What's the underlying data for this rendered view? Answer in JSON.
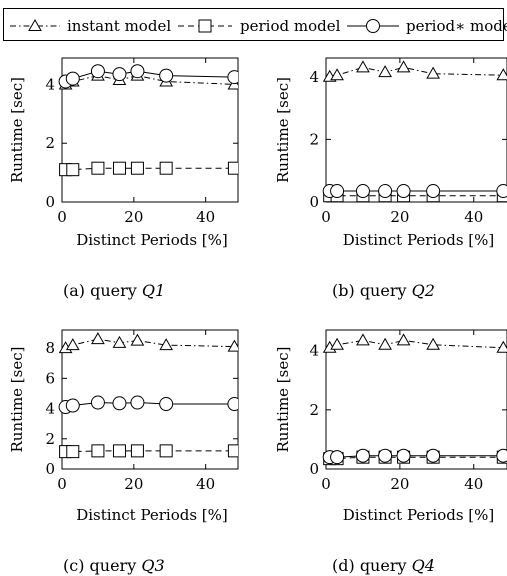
{
  "legend": {
    "entries": [
      {
        "label": "instant model",
        "marker": "triangle",
        "dash": "dashdot"
      },
      {
        "label": "period model",
        "marker": "square",
        "dash": "dashed"
      },
      {
        "label": "period∗ model",
        "marker": "circle",
        "dash": "solid"
      }
    ]
  },
  "chart_data": [
    {
      "type": "line",
      "caption_prefix": "(a) query ",
      "caption_query": "Q1",
      "xlabel": "Distinct Periods [%]",
      "ylabel": "Runtime [sec]",
      "xlim": [
        0,
        49
      ],
      "ylim": [
        0,
        4.9
      ],
      "xticks": [
        0,
        20,
        40
      ],
      "yticks": [
        0,
        2,
        4
      ],
      "grid": false,
      "series": [
        {
          "name": "instant model",
          "marker": "triangle",
          "x": [
            1,
            3,
            10,
            16,
            21,
            29,
            48
          ],
          "y": [
            4.0,
            4.1,
            4.3,
            4.15,
            4.3,
            4.1,
            4.0
          ]
        },
        {
          "name": "period model",
          "marker": "square",
          "x": [
            1,
            3,
            10,
            16,
            21,
            29,
            48
          ],
          "y": [
            1.1,
            1.1,
            1.15,
            1.15,
            1.15,
            1.15,
            1.15
          ]
        },
        {
          "name": "period∗ model",
          "marker": "circle",
          "x": [
            1,
            3,
            10,
            16,
            21,
            29,
            48
          ],
          "y": [
            4.1,
            4.2,
            4.45,
            4.35,
            4.45,
            4.3,
            4.25
          ]
        }
      ]
    },
    {
      "type": "line",
      "caption_prefix": "(b) query ",
      "caption_query": "Q2",
      "xlabel": "Distinct Periods [%]",
      "ylabel": "Runtime [sec]",
      "xlim": [
        0,
        49
      ],
      "ylim": [
        0,
        4.6
      ],
      "xticks": [
        0,
        20,
        40
      ],
      "yticks": [
        0,
        2,
        4
      ],
      "grid": false,
      "series": [
        {
          "name": "instant model",
          "marker": "triangle",
          "x": [
            1,
            3,
            10,
            16,
            21,
            29,
            48
          ],
          "y": [
            4.0,
            4.05,
            4.3,
            4.15,
            4.3,
            4.1,
            4.05
          ]
        },
        {
          "name": "period model",
          "marker": "square",
          "x": [
            1,
            3,
            10,
            16,
            21,
            29,
            48
          ],
          "y": [
            0.2,
            0.2,
            0.2,
            0.2,
            0.2,
            0.2,
            0.2
          ]
        },
        {
          "name": "period∗ model",
          "marker": "circle",
          "x": [
            1,
            3,
            10,
            16,
            21,
            29,
            48
          ],
          "y": [
            0.35,
            0.35,
            0.35,
            0.35,
            0.35,
            0.35,
            0.35
          ]
        }
      ]
    },
    {
      "type": "line",
      "caption_prefix": "(c) query ",
      "caption_query": "Q3",
      "xlabel": "Distinct Periods [%]",
      "ylabel": "Runtime [sec]",
      "xlim": [
        0,
        49
      ],
      "ylim": [
        0,
        9.2
      ],
      "xticks": [
        0,
        20,
        40
      ],
      "yticks": [
        0,
        2,
        4,
        6,
        8
      ],
      "grid": false,
      "series": [
        {
          "name": "instant model",
          "marker": "triangle",
          "x": [
            1,
            3,
            10,
            16,
            21,
            29,
            48
          ],
          "y": [
            8.0,
            8.2,
            8.6,
            8.35,
            8.5,
            8.2,
            8.1
          ]
        },
        {
          "name": "period model",
          "marker": "square",
          "x": [
            1,
            3,
            10,
            16,
            21,
            29,
            48
          ],
          "y": [
            1.15,
            1.15,
            1.2,
            1.2,
            1.2,
            1.2,
            1.2
          ]
        },
        {
          "name": "period∗ model",
          "marker": "circle",
          "x": [
            1,
            3,
            10,
            16,
            21,
            29,
            48
          ],
          "y": [
            4.1,
            4.2,
            4.4,
            4.35,
            4.4,
            4.3,
            4.3
          ]
        }
      ]
    },
    {
      "type": "line",
      "caption_prefix": "(d) query ",
      "caption_query": "Q4",
      "xlabel": "Distinct Periods [%]",
      "ylabel": "Runtime [sec]",
      "xlim": [
        0,
        49
      ],
      "ylim": [
        0,
        4.7
      ],
      "xticks": [
        0,
        20,
        40
      ],
      "yticks": [
        0,
        2,
        4
      ],
      "grid": false,
      "series": [
        {
          "name": "instant model",
          "marker": "triangle",
          "x": [
            1,
            3,
            10,
            16,
            21,
            29,
            48
          ],
          "y": [
            4.1,
            4.2,
            4.35,
            4.2,
            4.35,
            4.2,
            4.1
          ]
        },
        {
          "name": "period model",
          "marker": "square",
          "x": [
            1,
            3,
            10,
            16,
            21,
            29,
            48
          ],
          "y": [
            0.35,
            0.35,
            0.4,
            0.4,
            0.4,
            0.4,
            0.4
          ]
        },
        {
          "name": "period∗ model",
          "marker": "circle",
          "x": [
            1,
            3,
            10,
            16,
            21,
            29,
            48
          ],
          "y": [
            0.4,
            0.4,
            0.45,
            0.45,
            0.45,
            0.45,
            0.45
          ]
        }
      ]
    }
  ]
}
